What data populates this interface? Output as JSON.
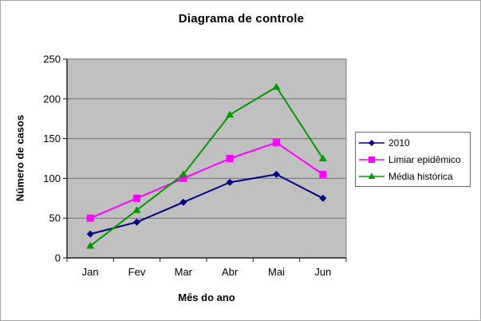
{
  "window": {
    "background": "#ffffff",
    "border_color": "#a6a6a6"
  },
  "chart_data": {
    "type": "line",
    "title": "Diagrama de controle",
    "xlabel": "Mês do ano",
    "ylabel": "Número de casos",
    "categories": [
      "Jan",
      "Fev",
      "Mar",
      "Abr",
      "Mai",
      "Jun"
    ],
    "series": [
      {
        "name": "2010",
        "color": "#000080",
        "marker": "diamond",
        "values": [
          30,
          45,
          70,
          95,
          105,
          75
        ]
      },
      {
        "name": "Limiar epidêmico",
        "color": "#ff00ff",
        "marker": "square",
        "values": [
          50,
          75,
          100,
          125,
          145,
          105
        ]
      },
      {
        "name": "Média histórica",
        "color": "#009900",
        "marker": "triangle",
        "values": [
          15,
          60,
          105,
          180,
          215,
          125
        ]
      }
    ],
    "ylim": [
      0,
      250
    ],
    "y_ticks": [
      0,
      50,
      100,
      150,
      200,
      250
    ],
    "grid": true,
    "legend_position": "right",
    "plot_background": "#c0c0c0",
    "gridline_color": "#707070",
    "axis_color": "#1a1a1a",
    "plot_border_color": "#7a7a7a",
    "tick_label_color": "#000000"
  }
}
